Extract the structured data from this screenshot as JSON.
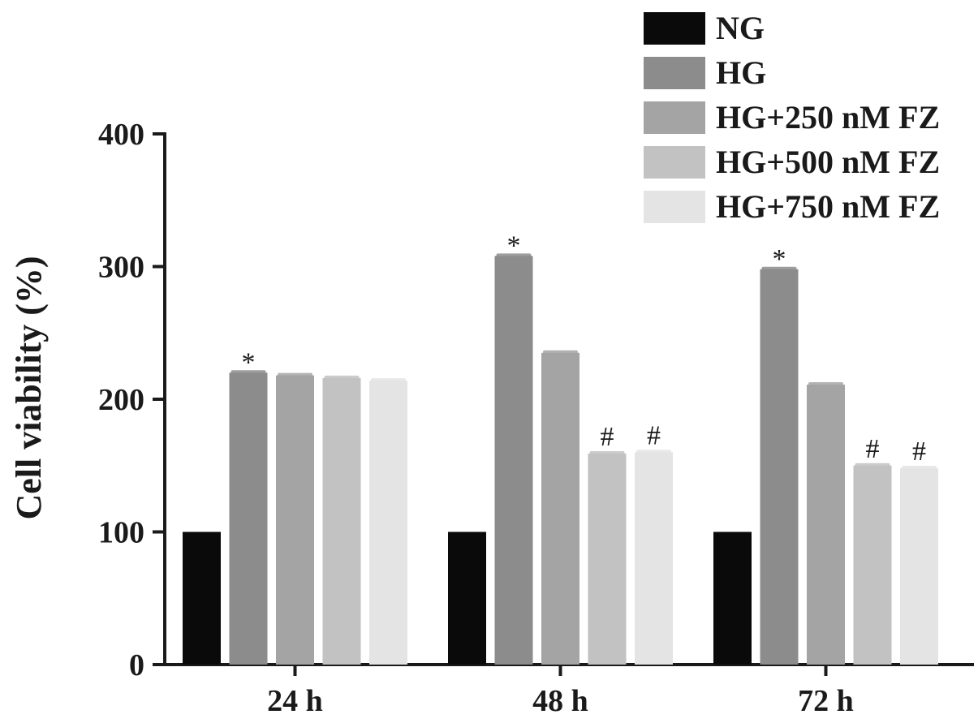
{
  "chart_data": {
    "type": "bar",
    "title": "",
    "xlabel": "",
    "ylabel": "Cell viability (%)",
    "ylim": [
      0,
      400
    ],
    "yticks": [
      0,
      100,
      200,
      300,
      400
    ],
    "grid": false,
    "legend_position": "top-right",
    "categories": [
      "24 h",
      "48 h",
      "72 h"
    ],
    "series": [
      {
        "name": "NG",
        "color": "#0a0a0a",
        "values": [
          100,
          100,
          100
        ],
        "annotations": [
          "",
          "",
          ""
        ]
      },
      {
        "name": "HG",
        "color": "#8c8c8c",
        "values": [
          220,
          308,
          298
        ],
        "annotations": [
          "*",
          "*",
          "*"
        ]
      },
      {
        "name": "HG+250 nM FZ",
        "color": "#a4a4a4",
        "values": [
          218,
          235,
          211
        ],
        "annotations": [
          "",
          "",
          ""
        ]
      },
      {
        "name": "HG+500 nM FZ",
        "color": "#c2c2c2",
        "values": [
          216,
          159,
          150
        ],
        "annotations": [
          "",
          "#",
          "#"
        ]
      },
      {
        "name": "HG+750 nM FZ",
        "color": "#e4e4e4",
        "values": [
          214,
          160,
          148
        ],
        "annotations": [
          "",
          "#",
          "#"
        ]
      }
    ]
  }
}
